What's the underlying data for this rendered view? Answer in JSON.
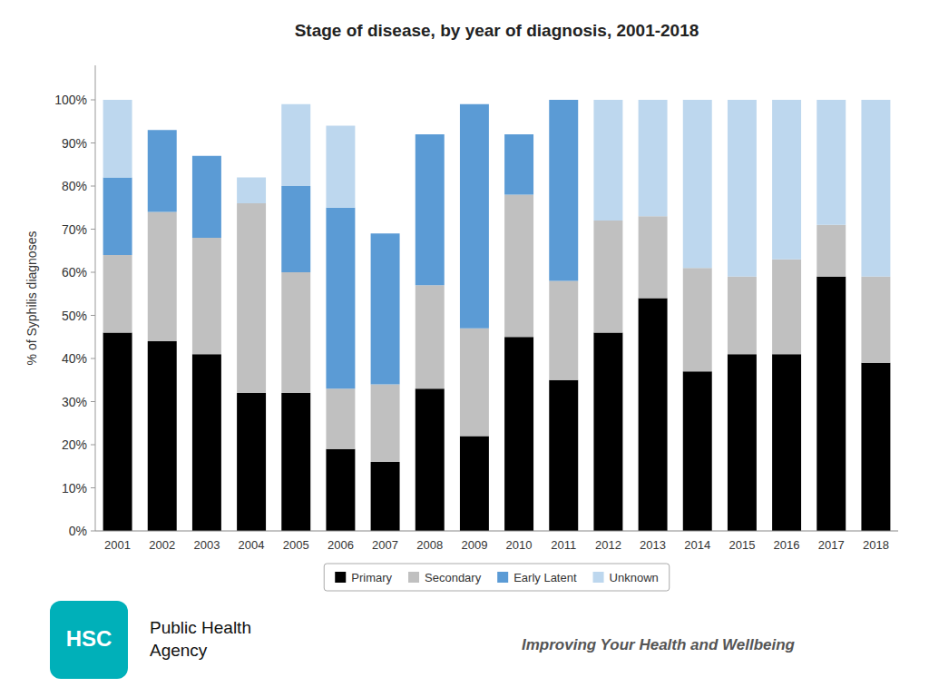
{
  "chart_data": {
    "type": "bar",
    "stacked": true,
    "title": "Stage of disease, by year of diagnosis, 2001-2018",
    "y_label": "% of Syphilis diagnoses",
    "categories": [
      "2001",
      "2002",
      "2003",
      "2004",
      "2005",
      "2006",
      "2007",
      "2008",
      "2009",
      "2010",
      "2011",
      "2012",
      "2013",
      "2014",
      "2015",
      "2016",
      "2017",
      "2018"
    ],
    "series": [
      {
        "name": "Primary",
        "color": "#000000",
        "values": [
          46,
          44,
          41,
          32,
          32,
          19,
          16,
          33,
          22,
          45,
          35,
          46,
          54,
          37,
          41,
          41,
          59,
          39
        ]
      },
      {
        "name": "Secondary",
        "color": "#c0c0c0",
        "values": [
          18,
          30,
          27,
          44,
          28,
          14,
          18,
          24,
          25,
          33,
          23,
          26,
          19,
          24,
          18,
          22,
          12,
          20
        ]
      },
      {
        "name": "Early Latent",
        "color": "#5b9bd5",
        "values": [
          18,
          19,
          19,
          0,
          20,
          42,
          35,
          35,
          52,
          14,
          42,
          0,
          0,
          0,
          0,
          0,
          0,
          0
        ]
      },
      {
        "name": "Unknown",
        "color": "#bdd7ee",
        "values": [
          18,
          0,
          0,
          6,
          19,
          19,
          0,
          0,
          0,
          0,
          0,
          28,
          27,
          39,
          41,
          37,
          29,
          41
        ]
      }
    ],
    "ylim": [
      0,
      108
    ],
    "yticks": [
      {
        "value": 0,
        "label": "0%"
      },
      {
        "value": 10,
        "label": "10%"
      },
      {
        "value": 20,
        "label": "20%"
      },
      {
        "value": 30,
        "label": "30%"
      },
      {
        "value": 40,
        "label": "40%"
      },
      {
        "value": 50,
        "label": "50%"
      },
      {
        "value": 60,
        "label": "60%"
      },
      {
        "value": 70,
        "label": "70%"
      },
      {
        "value": 80,
        "label": "80%"
      },
      {
        "value": 90,
        "label": "90%"
      },
      {
        "value": 100,
        "label": "100%"
      }
    ],
    "grid": false,
    "legend": "bottom",
    "annotations": [
      {
        "text": "HSC",
        "color": "#00b0b9"
      },
      {
        "text": "Public Health\nAgency"
      },
      {
        "text": "Improving Your Health and Wellbeing",
        "color": "#555555"
      }
    ]
  }
}
